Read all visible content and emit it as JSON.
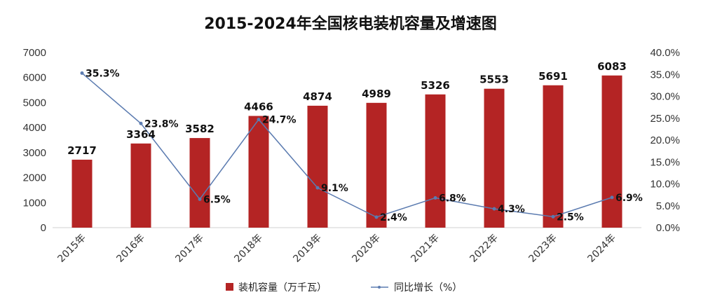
{
  "chart_data": {
    "type": "bar",
    "title": "2015-2024年全国核电装机容量及增速图",
    "categories": [
      "2015年",
      "2016年",
      "2017年",
      "2018年",
      "2019年",
      "2020年",
      "2021年",
      "2022年",
      "2023年",
      "2024年"
    ],
    "series": [
      {
        "name": "装机容量（万千瓦）",
        "type": "bar",
        "axis": "left",
        "color": "#b42424",
        "values": [
          2717,
          3364,
          3582,
          4466,
          4874,
          4989,
          5326,
          5553,
          5691,
          6083
        ],
        "labels": [
          "2717",
          "3364",
          "3582",
          "4466",
          "4874",
          "4989",
          "5326",
          "5553",
          "5691",
          "6083"
        ]
      },
      {
        "name": "同比增长（%）",
        "type": "line",
        "axis": "right",
        "color": "#5b7bb0",
        "values": [
          35.3,
          23.8,
          6.5,
          24.7,
          9.1,
          2.4,
          6.8,
          4.3,
          2.5,
          6.9
        ],
        "labels": [
          "35.3%",
          "23.8%",
          "6.5%",
          "24.7%",
          "9.1%",
          "2.4%",
          "6.8%",
          "4.3%",
          "2.5%",
          "6.9%"
        ]
      }
    ],
    "ylim_left": [
      0,
      7000
    ],
    "yticks_left": [
      "0",
      "1000",
      "2000",
      "3000",
      "4000",
      "5000",
      "6000",
      "7000"
    ],
    "ylim_right": [
      0,
      40
    ],
    "yticks_right": [
      "0.0%",
      "5.0%",
      "10.0%",
      "15.0%",
      "20.0%",
      "25.0%",
      "30.0%",
      "35.0%",
      "40.0%"
    ],
    "grid": false,
    "legend_position": "bottom-center"
  }
}
